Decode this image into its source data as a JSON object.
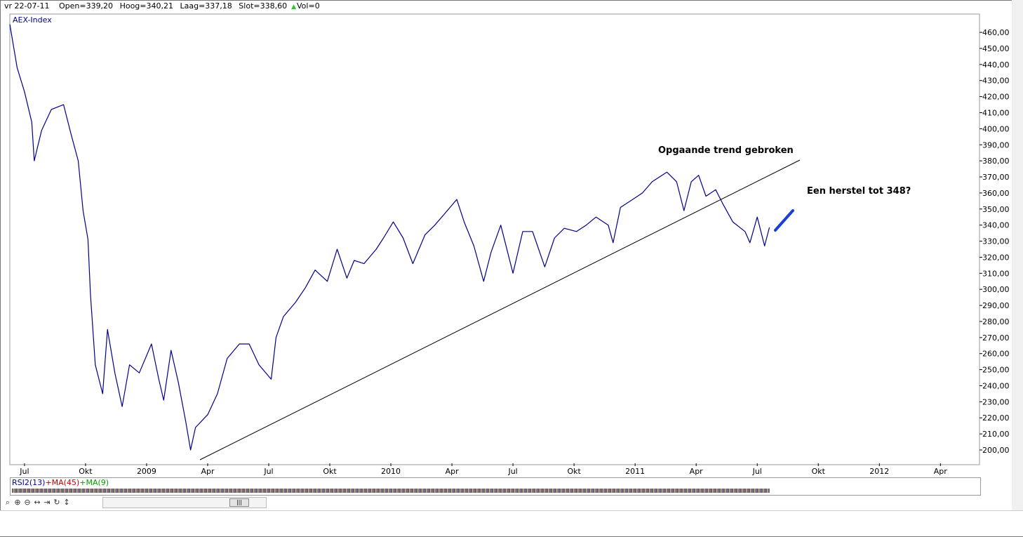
{
  "header": {
    "date": "vr 22-07-11",
    "open": "Open=339,20",
    "high": "Hoog=340,21",
    "low": "Laag=337,18",
    "close": "Slot=338,60",
    "volume": "Vol=0"
  },
  "chart_data": {
    "type": "line",
    "series": [
      {
        "name": "AEX-Index",
        "color": "#00008b",
        "x": [
          2008.44,
          2008.47,
          2008.5,
          2008.53,
          2008.54,
          2008.57,
          2008.61,
          2008.66,
          2008.69,
          2008.72,
          2008.74,
          2008.76,
          2008.77,
          2008.79,
          2008.82,
          2008.84,
          2008.87,
          2008.9,
          2008.93,
          2008.97,
          2009.02,
          2009.05,
          2009.07,
          2009.1,
          2009.13,
          2009.16,
          2009.18,
          2009.2,
          2009.25,
          2009.29,
          2009.33,
          2009.38,
          2009.42,
          2009.46,
          2009.51,
          2009.53,
          2009.56,
          2009.61,
          2009.65,
          2009.69,
          2009.74,
          2009.78,
          2009.82,
          2009.85,
          2009.89,
          2009.94,
          2009.97,
          2010.01,
          2010.05,
          2010.09,
          2010.14,
          2010.18,
          2010.22,
          2010.27,
          2010.3,
          2010.34,
          2010.38,
          2010.41,
          2010.45,
          2010.5,
          2010.54,
          2010.58,
          2010.63,
          2010.67,
          2010.71,
          2010.76,
          2010.8,
          2010.84,
          2010.89,
          2010.91,
          2010.94,
          2010.99,
          2011.03,
          2011.07,
          2011.13,
          2011.17,
          2011.2,
          2011.23,
          2011.26,
          2011.29,
          2011.33,
          2011.36,
          2011.4,
          2011.45,
          2011.47,
          2011.5,
          2011.53,
          2011.55
        ],
        "values": [
          465,
          438,
          423,
          404,
          380,
          399,
          412,
          415,
          397,
          380,
          349,
          331,
          297,
          253,
          235,
          275,
          248,
          227,
          253,
          248,
          266,
          244,
          231,
          262,
          242,
          218,
          200,
          214,
          222,
          235,
          257,
          266,
          266,
          253,
          244,
          270,
          283,
          292,
          301,
          312,
          305,
          325,
          307,
          318,
          316,
          325,
          332,
          342,
          332,
          316,
          334,
          340,
          347,
          356,
          342,
          327,
          305,
          323,
          340,
          310,
          336,
          336,
          314,
          332,
          338,
          336,
          340,
          345,
          340,
          329,
          351,
          356,
          360,
          367,
          373,
          367,
          349,
          367,
          371,
          358,
          362,
          353,
          342,
          336,
          329,
          345,
          327,
          338.6
        ]
      }
    ],
    "xlim": [
      2008.44,
      2012.41
    ],
    "xticks": [
      {
        "value": 2008.5,
        "label": "Jul"
      },
      {
        "value": 2008.75,
        "label": "Okt"
      },
      2009,
      {
        "value": 2009.25,
        "label": "Apr"
      },
      {
        "value": 2009.5,
        "label": "Jul"
      },
      {
        "value": 2009.75,
        "label": "Okt"
      },
      2010,
      {
        "value": 2010.25,
        "label": "Apr"
      },
      {
        "value": 2010.5,
        "label": "Jul"
      },
      {
        "value": 2010.75,
        "label": "Okt"
      },
      2011,
      {
        "value": 2011.25,
        "label": "Apr"
      },
      {
        "value": 2011.5,
        "label": "Jul"
      },
      {
        "value": 2011.75,
        "label": "Okt"
      },
      2012,
      {
        "value": 2012.25,
        "label": "Apr"
      }
    ],
    "ylim": [
      191.7,
      471.4
    ],
    "yticks": [
      {
        "value": 200,
        "label": "200,00"
      },
      {
        "value": 210,
        "label": "210,00"
      },
      {
        "value": 220,
        "label": "220,00"
      },
      {
        "value": 230,
        "label": "230,00"
      },
      {
        "value": 240,
        "label": "240,00"
      },
      {
        "value": 250,
        "label": "250,00"
      },
      {
        "value": 260,
        "label": "260,00"
      },
      {
        "value": 270,
        "label": "270,00"
      },
      {
        "value": 280,
        "label": "280,00"
      },
      {
        "value": 290,
        "label": "290,00"
      },
      {
        "value": 300,
        "label": "300,00"
      },
      {
        "value": 310,
        "label": "310,00"
      },
      {
        "value": 320,
        "label": "320,00"
      },
      {
        "value": 330,
        "label": "330,00"
      },
      {
        "value": 340,
        "label": "340,00"
      },
      {
        "value": 350,
        "label": "350,00"
      },
      {
        "value": 360,
        "label": "360,00"
      },
      {
        "value": 370,
        "label": "370,00"
      },
      {
        "value": 380,
        "label": "380,00"
      },
      {
        "value": 390,
        "label": "390,00"
      },
      {
        "value": 400,
        "label": "400,00"
      },
      {
        "value": 410,
        "label": "410,00"
      },
      {
        "value": 420,
        "label": "420,00"
      },
      {
        "value": 430,
        "label": "430,00"
      },
      {
        "value": 440,
        "label": "440,00"
      },
      {
        "value": 450,
        "label": "450,00"
      },
      {
        "value": 460,
        "label": "460,00"
      }
    ],
    "grid": false,
    "annotations": [
      "Opgaande trend gebroken",
      "Een herstel tot 348?"
    ]
  },
  "indicator": {
    "rsi": "RSI2(13)",
    "ma_long": "+MA(45)",
    "ma_short": "+MA(9)"
  }
}
